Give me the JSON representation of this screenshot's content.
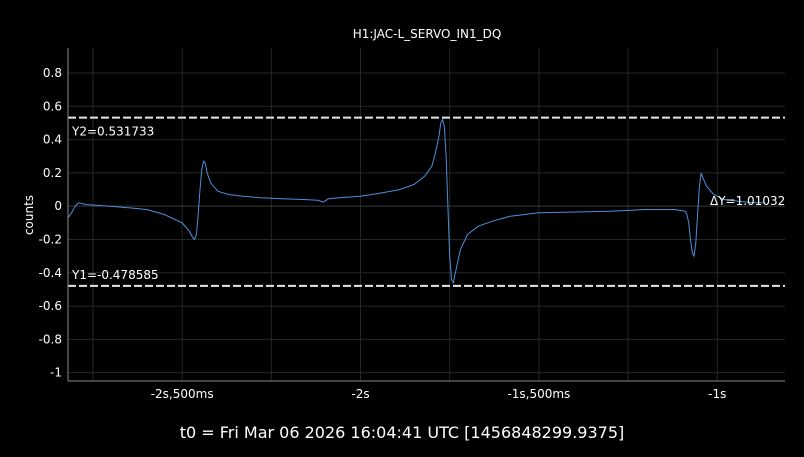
{
  "chart_data": {
    "type": "line",
    "title": "H1:JAC-L_SERVO_IN1_DQ",
    "xlabel": "",
    "ylabel": "counts",
    "xlim": [
      -2.82,
      -0.81
    ],
    "ylim": [
      -1.05,
      0.95
    ],
    "grid": true,
    "x_tick_labels": [
      {
        "x": -2.5,
        "label": "-2s,500ms"
      },
      {
        "x": -2.0,
        "label": "-2s"
      },
      {
        "x": -1.5,
        "label": "-1s,500ms"
      },
      {
        "x": -1.0,
        "label": "-1s"
      }
    ],
    "y_tick_labels": [
      {
        "y": 0.8,
        "label": "0.8"
      },
      {
        "y": 0.6,
        "label": "0.6"
      },
      {
        "y": 0.4,
        "label": "0.4"
      },
      {
        "y": 0.2,
        "label": "0.2"
      },
      {
        "y": 0.0,
        "label": "0"
      },
      {
        "y": -0.2,
        "label": "-0.2"
      },
      {
        "y": -0.4,
        "label": "-0.4"
      },
      {
        "y": -0.6,
        "label": "-0.6"
      },
      {
        "y": -0.8,
        "label": "-0.8"
      },
      {
        "y": -1.0,
        "label": "-1"
      }
    ],
    "cursors": [
      {
        "y": 0.531733,
        "label": "Y2=0.531733"
      },
      {
        "y": -0.478585,
        "label": "Y1=-0.478585"
      }
    ],
    "delta_label": "ΔY=1.01032",
    "series": [
      {
        "color": "#4a90d9",
        "x": [
          -2.82,
          -2.81,
          -2.8,
          -2.79,
          -2.77,
          -2.74,
          -2.7,
          -2.65,
          -2.6,
          -2.55,
          -2.5,
          -2.48,
          -2.47,
          -2.465,
          -2.46,
          -2.455,
          -2.45,
          -2.445,
          -2.44,
          -2.435,
          -2.43,
          -2.42,
          -2.4,
          -2.37,
          -2.33,
          -2.28,
          -2.22,
          -2.16,
          -2.12,
          -2.105,
          -2.1,
          -2.09,
          -2.06,
          -2.0,
          -1.94,
          -1.89,
          -1.85,
          -1.82,
          -1.8,
          -1.79,
          -1.78,
          -1.775,
          -1.77,
          -1.765,
          -1.76,
          -1.755,
          -1.75,
          -1.745,
          -1.74,
          -1.73,
          -1.72,
          -1.7,
          -1.67,
          -1.63,
          -1.58,
          -1.5,
          -1.4,
          -1.3,
          -1.2,
          -1.12,
          -1.09,
          -1.085,
          -1.08,
          -1.075,
          -1.07,
          -1.065,
          -1.06,
          -1.055,
          -1.05,
          -1.045,
          -1.04,
          -1.03,
          -1.01,
          -0.98,
          -0.94,
          -0.9,
          -0.87
        ],
        "y": [
          -0.07,
          -0.04,
          0.0,
          0.02,
          0.01,
          0.005,
          0.0,
          -0.01,
          -0.02,
          -0.05,
          -0.1,
          -0.15,
          -0.19,
          -0.2,
          -0.17,
          -0.05,
          0.1,
          0.22,
          0.27,
          0.26,
          0.2,
          0.14,
          0.09,
          0.07,
          0.06,
          0.05,
          0.045,
          0.04,
          0.035,
          0.025,
          0.03,
          0.045,
          0.05,
          0.06,
          0.08,
          0.1,
          0.13,
          0.18,
          0.24,
          0.32,
          0.42,
          0.5,
          0.52,
          0.48,
          0.3,
          0.0,
          -0.3,
          -0.44,
          -0.46,
          -0.36,
          -0.26,
          -0.17,
          -0.12,
          -0.09,
          -0.06,
          -0.04,
          -0.035,
          -0.03,
          -0.02,
          -0.02,
          -0.03,
          -0.05,
          -0.1,
          -0.2,
          -0.28,
          -0.3,
          -0.22,
          -0.05,
          0.12,
          0.2,
          0.17,
          0.12,
          0.07,
          0.04,
          0.03,
          0.02,
          0.02
        ]
      }
    ]
  },
  "t0_label": "t0 = Fri Mar 06 2026 16:04:41 UTC [1456848299.9375]"
}
